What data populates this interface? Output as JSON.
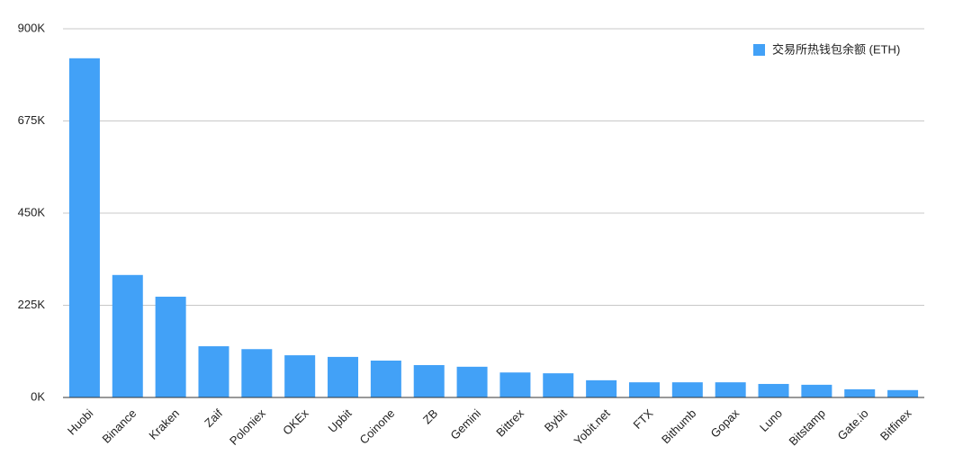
{
  "chart_data": {
    "type": "bar",
    "categories": [
      "Huobi",
      "Binance",
      "Kraken",
      "Zaif",
      "Poloniex",
      "OKEx",
      "Upbit",
      "Coinone",
      "ZB",
      "Gemini",
      "Bittrex",
      "Bybit",
      "Yobit.net",
      "FTX",
      "Bithumb",
      "Gopax",
      "Luno",
      "Bitstamp",
      "Gate.io",
      "Bitfinex"
    ],
    "series": [
      {
        "name": "交易所热钱包余额 (ETH)",
        "color": "#42a1f7",
        "values": [
          828000,
          299000,
          246000,
          125000,
          118000,
          103000,
          99000,
          90000,
          79000,
          75000,
          61000,
          59000,
          42000,
          37000,
          37000,
          37000,
          33000,
          31000,
          20000,
          18000
        ]
      }
    ],
    "ylim": [
      0,
      900000
    ],
    "yticks": [
      {
        "value": 0,
        "label": "0K"
      },
      {
        "value": 225000,
        "label": "225K"
      },
      {
        "value": 450000,
        "label": "450K"
      },
      {
        "value": 675000,
        "label": "675K"
      },
      {
        "value": 900000,
        "label": "900K"
      }
    ],
    "grid": true,
    "legend": "top-right"
  }
}
